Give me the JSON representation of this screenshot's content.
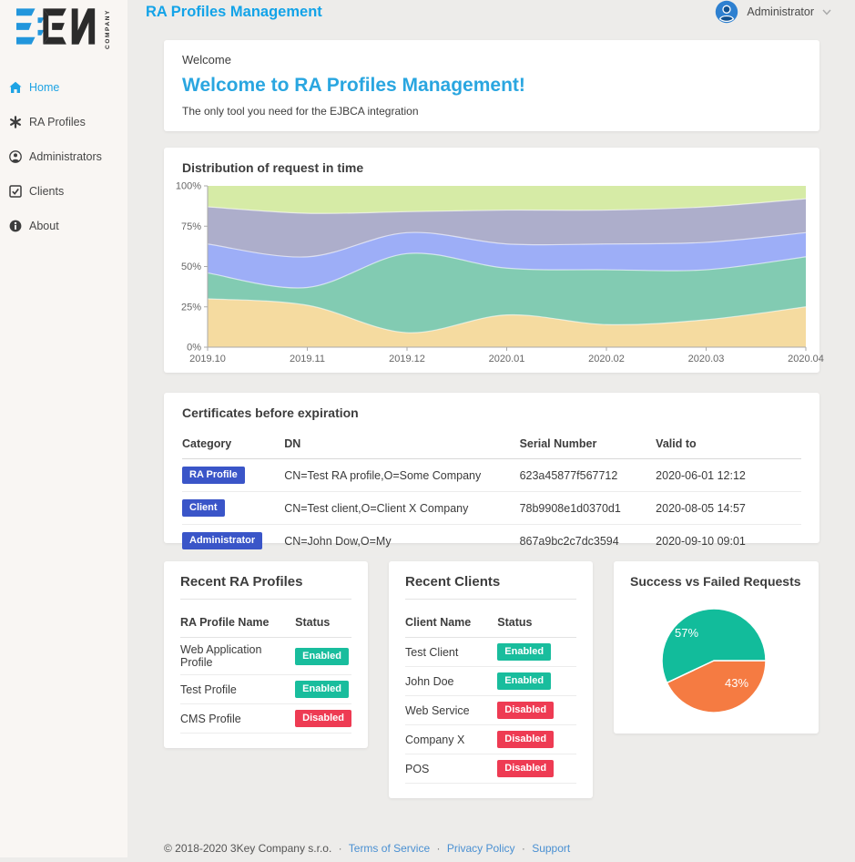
{
  "header": {
    "title": "RA Profiles Management",
    "user": {
      "name": "Administrator"
    }
  },
  "sidebar": {
    "company_label": "COMPANY",
    "items": [
      {
        "label": "Home",
        "icon": "home-icon",
        "active": true
      },
      {
        "label": "RA Profiles",
        "icon": "asterisk-icon",
        "active": false
      },
      {
        "label": "Administrators",
        "icon": "user-circle-icon",
        "active": false
      },
      {
        "label": "Clients",
        "icon": "check-square-icon",
        "active": false
      },
      {
        "label": "About",
        "icon": "info-circle-icon",
        "active": false
      }
    ]
  },
  "welcome": {
    "kicker": "Welcome",
    "title": "Welcome to RA Profiles Management!",
    "subtitle": "The only tool you need for the EJBCA integration"
  },
  "certificates": {
    "title": "Certificates before expiration",
    "columns": [
      "Category",
      "DN",
      "Serial Number",
      "Valid to"
    ],
    "rows": [
      {
        "category": "RA Profile",
        "dn": "CN=Test RA profile,O=Some Company",
        "serial": "623a45877f567712",
        "valid_to": "2020-06-01 12:12"
      },
      {
        "category": "Client",
        "dn": "CN=Test client,O=Client X Company",
        "serial": "78b9908e1d0370d1",
        "valid_to": "2020-08-05 14:57"
      },
      {
        "category": "Administrator",
        "dn": "CN=John Dow,O=My",
        "serial": "867a9bc2c7dc3594",
        "valid_to": "2020-09-10 09:01"
      }
    ]
  },
  "recent_ra_profiles": {
    "title": "Recent RA Profiles",
    "columns": [
      "RA Profile Name",
      "Status"
    ],
    "rows": [
      {
        "name": "Web Application Profile",
        "status": "Enabled"
      },
      {
        "name": "Test Profile",
        "status": "Enabled"
      },
      {
        "name": "CMS Profile",
        "status": "Disabled"
      }
    ]
  },
  "recent_clients": {
    "title": "Recent Clients",
    "columns": [
      "Client Name",
      "Status"
    ],
    "rows": [
      {
        "name": "Test Client",
        "status": "Enabled"
      },
      {
        "name": "John Doe",
        "status": "Enabled"
      },
      {
        "name": "Web Service",
        "status": "Disabled"
      },
      {
        "name": "Company X",
        "status": "Disabled"
      },
      {
        "name": "POS",
        "status": "Disabled"
      }
    ]
  },
  "footer": {
    "copyright": "© 2018-2020  3Key Company s.r.o.",
    "separator": "·",
    "links": [
      "Terms of Service",
      "Privacy Policy",
      "Support"
    ]
  },
  "colors": {
    "accent_blue": "#13a3e8",
    "category_badge_blue": "#3a55c8",
    "enabled_green": "#19bd9d",
    "disabled_red": "#ee3b53",
    "sidebar_bg": "#f9f6f3",
    "page_bg": "#edecea",
    "avatar_blue": "#2e80d0"
  },
  "chart_data": [
    {
      "type": "area",
      "title": "Distribution of request in time",
      "stacked": true,
      "grid": false,
      "legend": false,
      "ylim": [
        0,
        100
      ],
      "ytick_labels": [
        "0%",
        "25%",
        "50%",
        "75%",
        "100%"
      ],
      "x": [
        "2019.10",
        "2019.11",
        "2019.12",
        "2020.01",
        "2020.02",
        "2020.03",
        "2020.04"
      ],
      "series": [
        {
          "name": "band-1-sand",
          "color": "#f5dba0",
          "values": [
            30,
            26,
            9,
            20,
            14,
            17,
            25
          ]
        },
        {
          "name": "band-2-teal",
          "color": "#82cbb2",
          "values": [
            16,
            11,
            49,
            29,
            34,
            31,
            31
          ]
        },
        {
          "name": "band-3-blue",
          "color": "#9daef7",
          "values": [
            18,
            19,
            13,
            15,
            16,
            17,
            15
          ]
        },
        {
          "name": "band-4-gray",
          "color": "#adaecb",
          "values": [
            23,
            27,
            13,
            21,
            21,
            22,
            21
          ]
        },
        {
          "name": "band-5-green",
          "color": "#d6eba6",
          "values": [
            13,
            17,
            16,
            15,
            15,
            13,
            8
          ]
        }
      ]
    },
    {
      "type": "pie",
      "title": "Success vs Failed Requests",
      "start_angle_deg": 90,
      "labels_inside": true,
      "slices": [
        {
          "label": "43%",
          "value": 43,
          "color": "#f57b42",
          "label_offset": [
            25,
            29
          ]
        },
        {
          "label": "57%",
          "value": 57,
          "color": "#12bc9b",
          "label_offset": [
            -30,
            -26
          ]
        }
      ]
    }
  ]
}
